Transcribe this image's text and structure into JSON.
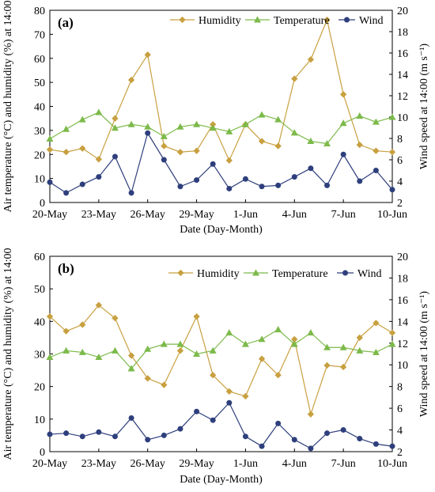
{
  "chart_data": [
    {
      "type": "line",
      "panel_label": "(a)",
      "xlabel": "Date  (Day-Month)",
      "ylabel_left": "Air temperature (°C) and humidity (%) at 14:00",
      "ylabel_right": "Wind speed at 14:00 (m s⁻¹)",
      "ylim_left": [
        0,
        80
      ],
      "yticks_left": [
        "0",
        "10",
        "20",
        "30",
        "40",
        "50",
        "60",
        "70",
        "80"
      ],
      "ylim_right": [
        2,
        20
      ],
      "yticks_right": [
        "2",
        "4",
        "6",
        "8",
        "10",
        "12",
        "14",
        "16",
        "18",
        "20"
      ],
      "x_tick_labels": [
        "20-May",
        "23-May",
        "26-May",
        "29-May",
        "1-Jun",
        "4-Jun",
        "7-Jun",
        "10-Jun"
      ],
      "x": [
        "20-May",
        "21-May",
        "22-May",
        "23-May",
        "24-May",
        "25-May",
        "26-May",
        "27-May",
        "28-May",
        "29-May",
        "30-May",
        "31-May",
        "1-Jun",
        "2-Jun",
        "3-Jun",
        "4-Jun",
        "5-Jun",
        "6-Jun",
        "7-Jun",
        "8-Jun",
        "9-Jun",
        "10-Jun"
      ],
      "series": [
        {
          "name": "Humidity",
          "axis": "left",
          "color": "#c8a040",
          "marker": "diamond",
          "values": [
            22,
            21,
            22.5,
            18,
            35,
            51,
            61.5,
            23.5,
            21,
            21.5,
            32.5,
            17.5,
            32.5,
            25.5,
            23.5,
            51.5,
            59.5,
            76,
            45,
            24,
            21.5,
            21
          ]
        },
        {
          "name": "Temperature",
          "axis": "left",
          "color": "#7cba4a",
          "marker": "triangle",
          "values": [
            26.5,
            30.5,
            34.5,
            37.5,
            31,
            32.5,
            31.5,
            27.5,
            31.5,
            32.5,
            31,
            29.5,
            32.5,
            36.5,
            34.5,
            29,
            25.5,
            24.5,
            33,
            36,
            33.5,
            35.5
          ]
        },
        {
          "name": "Wind",
          "axis": "right",
          "color": "#2e3f7c",
          "marker": "circle",
          "values": [
            3.9,
            2.9,
            3.7,
            4.4,
            6.3,
            2.9,
            8.5,
            6.0,
            3.5,
            4.1,
            5.6,
            3.3,
            4.2,
            3.5,
            3.6,
            4.4,
            5.2,
            3.6,
            6.5,
            4.0,
            5.0,
            3.2
          ]
        }
      ],
      "legend_position": "top-right",
      "grid": false
    },
    {
      "type": "line",
      "panel_label": "(b)",
      "xlabel": "Date  (Day-Month)",
      "ylabel_left": "Air temperature (°C) and humidity (%) at 14:00",
      "ylabel_right": "Wind speed at 14:00 (m s⁻¹)",
      "ylim_left": [
        0,
        60
      ],
      "yticks_left": [
        "0",
        "10",
        "20",
        "30",
        "40",
        "50",
        "60"
      ],
      "ylim_right": [
        2,
        20
      ],
      "yticks_right": [
        "2",
        "4",
        "6",
        "8",
        "10",
        "12",
        "14",
        "16",
        "18",
        "20"
      ],
      "x_tick_labels": [
        "20-May",
        "23-May",
        "26-May",
        "29-May",
        "1-Jun",
        "4-Jun",
        "7-Jun",
        "10-Jun"
      ],
      "x": [
        "20-May",
        "21-May",
        "22-May",
        "23-May",
        "24-May",
        "25-May",
        "26-May",
        "27-May",
        "28-May",
        "29-May",
        "30-May",
        "31-May",
        "1-Jun",
        "2-Jun",
        "3-Jun",
        "4-Jun",
        "5-Jun",
        "6-Jun",
        "7-Jun",
        "8-Jun",
        "9-Jun",
        "10-Jun"
      ],
      "series": [
        {
          "name": "Humidity",
          "axis": "left",
          "color": "#c8a040",
          "marker": "diamond",
          "values": [
            41.5,
            37,
            39,
            45,
            41,
            29.5,
            22.5,
            20.5,
            31,
            41.5,
            23.5,
            18.5,
            17,
            28.5,
            23.5,
            34.5,
            11.5,
            26.5,
            26,
            35,
            39.5,
            36.5
          ]
        },
        {
          "name": "Temperature",
          "axis": "left",
          "color": "#7cba4a",
          "marker": "triangle",
          "values": [
            29,
            31,
            30.5,
            29,
            31,
            25.5,
            31.5,
            33,
            33,
            30,
            31,
            36.5,
            33,
            34.5,
            37.5,
            33,
            36.5,
            32,
            32,
            31,
            30.5,
            33
          ]
        },
        {
          "name": "Wind",
          "axis": "right",
          "color": "#2e3f7c",
          "marker": "circle",
          "values": [
            3.6,
            3.7,
            3.4,
            3.8,
            3.4,
            5.1,
            3.1,
            3.5,
            4.1,
            5.7,
            4.9,
            6.5,
            3.4,
            2.5,
            4.6,
            3.1,
            2.3,
            3.7,
            4.0,
            3.2,
            2.7,
            2.5
          ]
        }
      ],
      "legend_position": "top-right",
      "grid": false
    }
  ]
}
